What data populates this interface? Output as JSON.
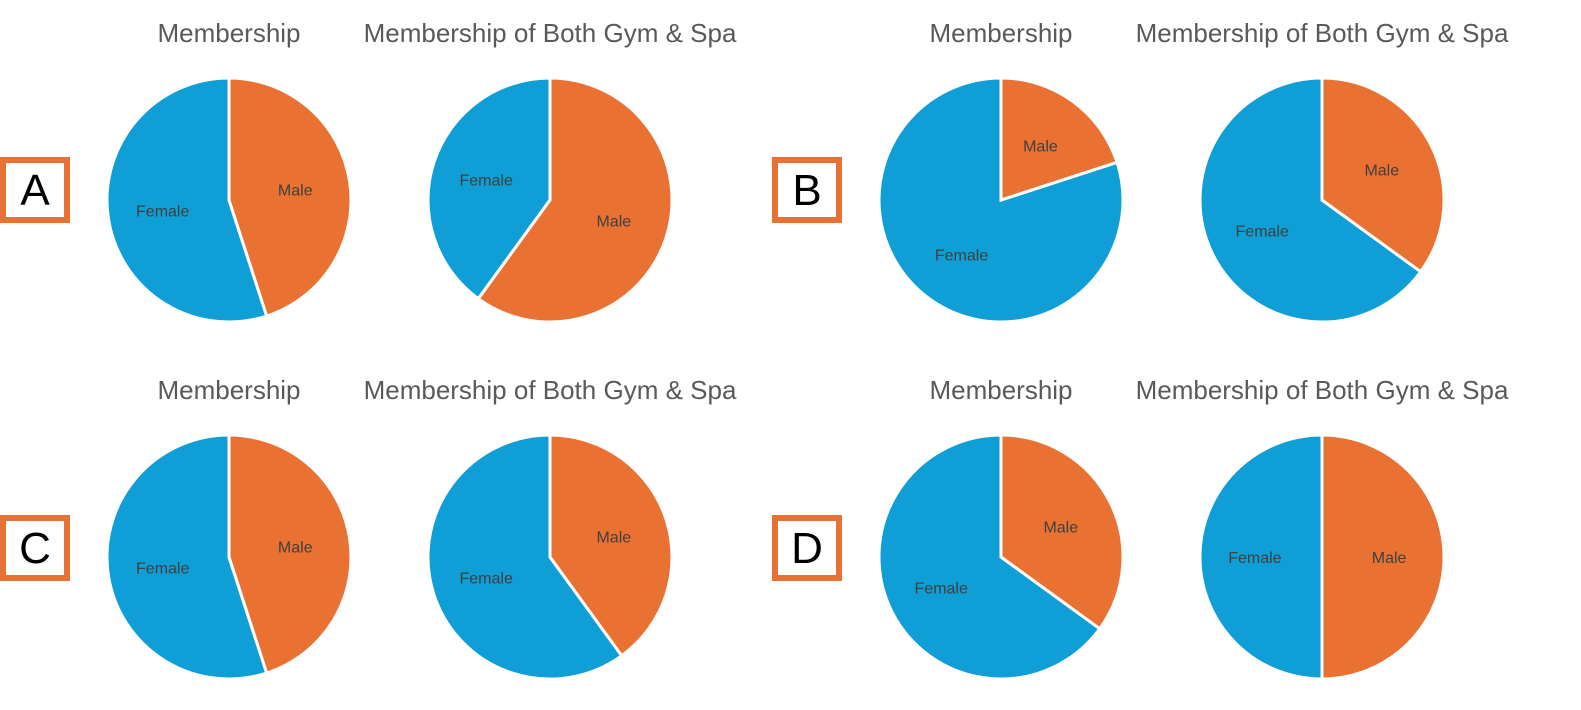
{
  "colors": {
    "female": "#0f9ed5",
    "male": "#e97132",
    "box": "#e87233"
  },
  "chart_data": [
    {
      "type": "pie",
      "option": "A",
      "title": "Membership",
      "labels": [
        "Female",
        "Male"
      ],
      "values": [
        55,
        45
      ]
    },
    {
      "type": "pie",
      "option": "A",
      "title": "Membership of Both Gym & Spa",
      "labels": [
        "Female",
        "Male"
      ],
      "values": [
        40,
        60
      ]
    },
    {
      "type": "pie",
      "option": "B",
      "title": "Membership",
      "labels": [
        "Female",
        "Male"
      ],
      "values": [
        80,
        20
      ]
    },
    {
      "type": "pie",
      "option": "B",
      "title": "Membership of Both Gym & Spa",
      "labels": [
        "Female",
        "Male"
      ],
      "values": [
        65,
        35
      ]
    },
    {
      "type": "pie",
      "option": "C",
      "title": "Membership",
      "labels": [
        "Female",
        "Male"
      ],
      "values": [
        55,
        45
      ]
    },
    {
      "type": "pie",
      "option": "C",
      "title": "Membership of Both Gym & Spa",
      "labels": [
        "Female",
        "Male"
      ],
      "values": [
        60,
        40
      ]
    },
    {
      "type": "pie",
      "option": "D",
      "title": "Membership",
      "labels": [
        "Female",
        "Male"
      ],
      "values": [
        65,
        35
      ]
    },
    {
      "type": "pie",
      "option": "D",
      "title": "Membership of Both Gym & Spa",
      "labels": [
        "Female",
        "Male"
      ],
      "values": [
        50,
        50
      ]
    }
  ],
  "options": [
    {
      "letter": "A"
    },
    {
      "letter": "B"
    },
    {
      "letter": "C"
    },
    {
      "letter": "D"
    }
  ]
}
